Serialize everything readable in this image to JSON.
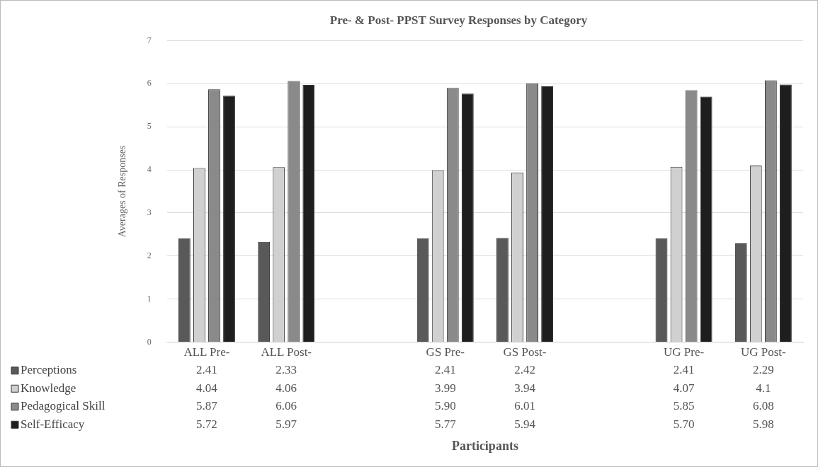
{
  "chart_data": {
    "type": "bar",
    "title": "Pre- & Post- PPST Survey Responses by Category",
    "annotations": [
      "Participants"
    ],
    "ylabel": "Averages of Responses",
    "categories": [
      "ALL Pre-",
      "ALL Post-",
      null,
      "GS Pre-",
      "GS Post-",
      null,
      "UG Pre-",
      "UG Post-"
    ],
    "series": [
      {
        "name": "Perceptions",
        "color": "#595959",
        "values": [
          2.41,
          2.33,
          null,
          2.41,
          2.42,
          null,
          2.41,
          2.29
        ],
        "value_labels": [
          "2.41",
          "2.33",
          null,
          "2.41",
          "2.42",
          null,
          "2.41",
          "2.29"
        ]
      },
      {
        "name": "Knowledge",
        "color": "#d0d0d0",
        "values": [
          4.04,
          4.06,
          null,
          3.99,
          3.94,
          null,
          4.07,
          4.1
        ],
        "value_labels": [
          "4.04",
          "4.06",
          null,
          "3.99",
          "3.94",
          null,
          "4.07",
          "4.1"
        ]
      },
      {
        "name": "Pedagogical Skill",
        "color": "#8a8a8a",
        "values": [
          5.87,
          6.06,
          null,
          5.9,
          6.01,
          null,
          5.85,
          6.08
        ],
        "value_labels": [
          "5.87",
          "6.06",
          null,
          "5.90",
          "6.01",
          null,
          "5.85",
          "6.08"
        ]
      },
      {
        "name": "Self-Efficacy",
        "color": "#1e1e1e",
        "values": [
          5.72,
          5.97,
          null,
          5.77,
          5.94,
          null,
          5.7,
          5.98
        ],
        "value_labels": [
          "5.72",
          "5.97",
          null,
          "5.77",
          "5.94",
          null,
          "5.70",
          "5.98"
        ]
      }
    ],
    "ylim": [
      0,
      7
    ],
    "yticks": [
      0,
      1,
      2,
      3,
      4,
      5,
      6,
      7
    ],
    "grid": "y",
    "legend": "bottom"
  }
}
